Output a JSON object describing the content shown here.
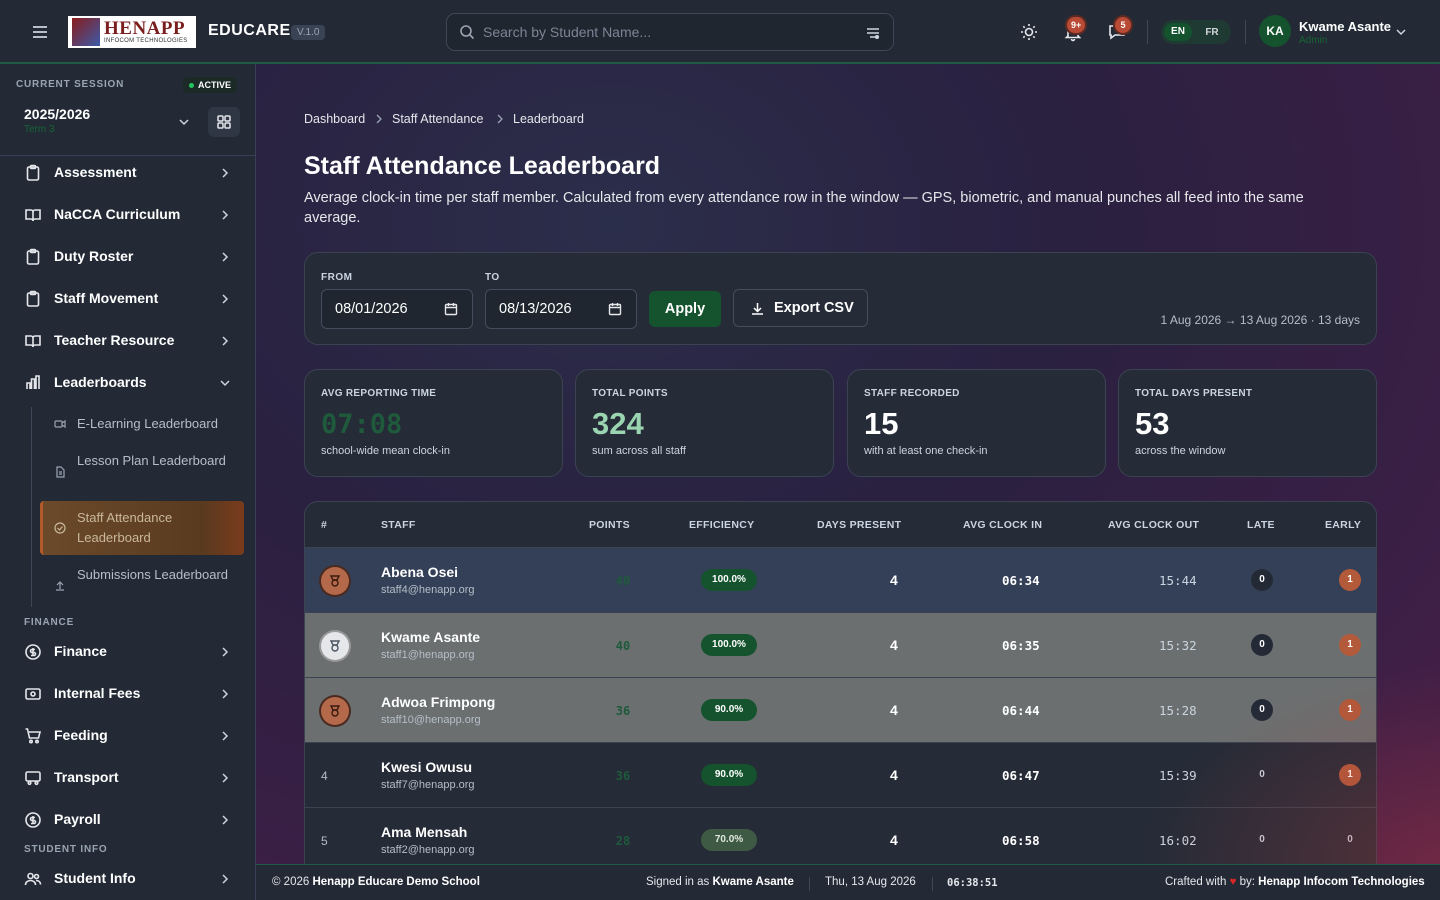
{
  "topbar": {
    "logo_text": "HENAPP",
    "logo_sub": "INFOCOM TECHNOLOGIES",
    "brand": "EDUCARE",
    "version": "V.1.0",
    "search_placeholder": "Search by Student Name...",
    "notifications_badge": "9+",
    "messages_badge": "5",
    "lang_en": "EN",
    "lang_fr": "FR",
    "user_initials": "KA",
    "user_name": "Kwame Asante",
    "user_role": "Admin"
  },
  "session": {
    "label": "CURRENT SESSION",
    "status": "ACTIVE",
    "year": "2025/2026",
    "term": "Term 3"
  },
  "sidebar": {
    "items": [
      {
        "label": "Assessment",
        "icon": "clipboard-icon"
      },
      {
        "label": "NaCCA Curriculum",
        "icon": "book-icon"
      },
      {
        "label": "Duty Roster",
        "icon": "clipboard-icon"
      },
      {
        "label": "Staff Movement",
        "icon": "clipboard-icon"
      },
      {
        "label": "Teacher Resource",
        "icon": "book-icon"
      },
      {
        "label": "Leaderboards",
        "icon": "bar-chart-icon"
      }
    ],
    "leaderboards_sub": [
      {
        "label": "E-Learning Leaderboard",
        "icon": "video-icon"
      },
      {
        "label": "Lesson Plan Leaderboard",
        "icon": "file-icon"
      },
      {
        "label": "Staff Attendance Leaderboard",
        "icon": "check-circle-icon"
      },
      {
        "label": "Submissions Leaderboard",
        "icon": "upload-icon"
      }
    ],
    "finance_title": "FINANCE",
    "finance_items": [
      {
        "label": "Finance",
        "icon": "dollar-icon"
      },
      {
        "label": "Internal Fees",
        "icon": "money-icon"
      },
      {
        "label": "Feeding",
        "icon": "cart-icon"
      },
      {
        "label": "Transport",
        "icon": "bus-icon"
      },
      {
        "label": "Payroll",
        "icon": "dollar-icon"
      }
    ],
    "student_title": "STUDENT INFO",
    "student_items": [
      {
        "label": "Student Info",
        "icon": "users-icon"
      }
    ]
  },
  "breadcrumb": [
    "Dashboard",
    "Staff Attendance",
    "Leaderboard"
  ],
  "page": {
    "title": "Staff Attendance Leaderboard",
    "description": "Average clock-in time per staff member. Calculated from every attendance row in the window — GPS, biometric, and manual punches all feed into the same average."
  },
  "filter": {
    "from_label": "FROM",
    "from_value": "08/01/2026",
    "to_label": "TO",
    "to_value": "08/13/2026",
    "apply_label": "Apply",
    "export_label": "Export CSV",
    "range_text": "1 Aug 2026 → 13 Aug 2026 · 13 days"
  },
  "kpis": [
    {
      "label": "AVG REPORTING TIME",
      "value": "07:08",
      "sub": "school-wide mean clock-in"
    },
    {
      "label": "TOTAL POINTS",
      "value": "324",
      "sub": "sum across all staff"
    },
    {
      "label": "STAFF RECORDED",
      "value": "15",
      "sub": "with at least one check-in"
    },
    {
      "label": "TOTAL DAYS PRESENT",
      "value": "53",
      "sub": "across the window"
    }
  ],
  "table": {
    "headers": [
      "#",
      "STAFF",
      "POINTS",
      "EFFICIENCY",
      "DAYS PRESENT",
      "AVG CLOCK IN",
      "AVG CLOCK OUT",
      "LATE",
      "EARLY"
    ],
    "rows": [
      {
        "rank": "1",
        "name": "Abena Osei",
        "email": "staff4@henapp.org",
        "points": "40",
        "efficiency": "100.0%",
        "days": "4",
        "clock_in": "06:34",
        "clock_out": "15:44",
        "late": "0",
        "early": "1"
      },
      {
        "rank": "2",
        "name": "Kwame Asante",
        "email": "staff1@henapp.org",
        "points": "40",
        "efficiency": "100.0%",
        "days": "4",
        "clock_in": "06:35",
        "clock_out": "15:32",
        "late": "0",
        "early": "1"
      },
      {
        "rank": "3",
        "name": "Adwoa Frimpong",
        "email": "staff10@henapp.org",
        "points": "36",
        "efficiency": "90.0%",
        "days": "4",
        "clock_in": "06:44",
        "clock_out": "15:28",
        "late": "0",
        "early": "1"
      },
      {
        "rank": "4",
        "name": "Kwesi Owusu",
        "email": "staff7@henapp.org",
        "points": "36",
        "efficiency": "90.0%",
        "days": "4",
        "clock_in": "06:47",
        "clock_out": "15:39",
        "late": "0",
        "early": "1"
      },
      {
        "rank": "5",
        "name": "Ama Mensah",
        "email": "staff2@henapp.org",
        "points": "28",
        "efficiency": "70.0%",
        "days": "4",
        "clock_in": "06:58",
        "clock_out": "16:02",
        "late": "0",
        "early": "0"
      }
    ]
  },
  "footer": {
    "copyright_prefix": "© 2026",
    "school": "Henapp Educare Demo School",
    "signed_in_prefix": "Signed in as",
    "signed_in_user": "Kwame Asante",
    "date": "Thu, 13 Aug 2026",
    "time": "06:38:51",
    "crafted_prefix": "Crafted with",
    "crafted_heart": "♥",
    "crafted_by": "by:",
    "company": "Henapp Infocom Technologies"
  }
}
